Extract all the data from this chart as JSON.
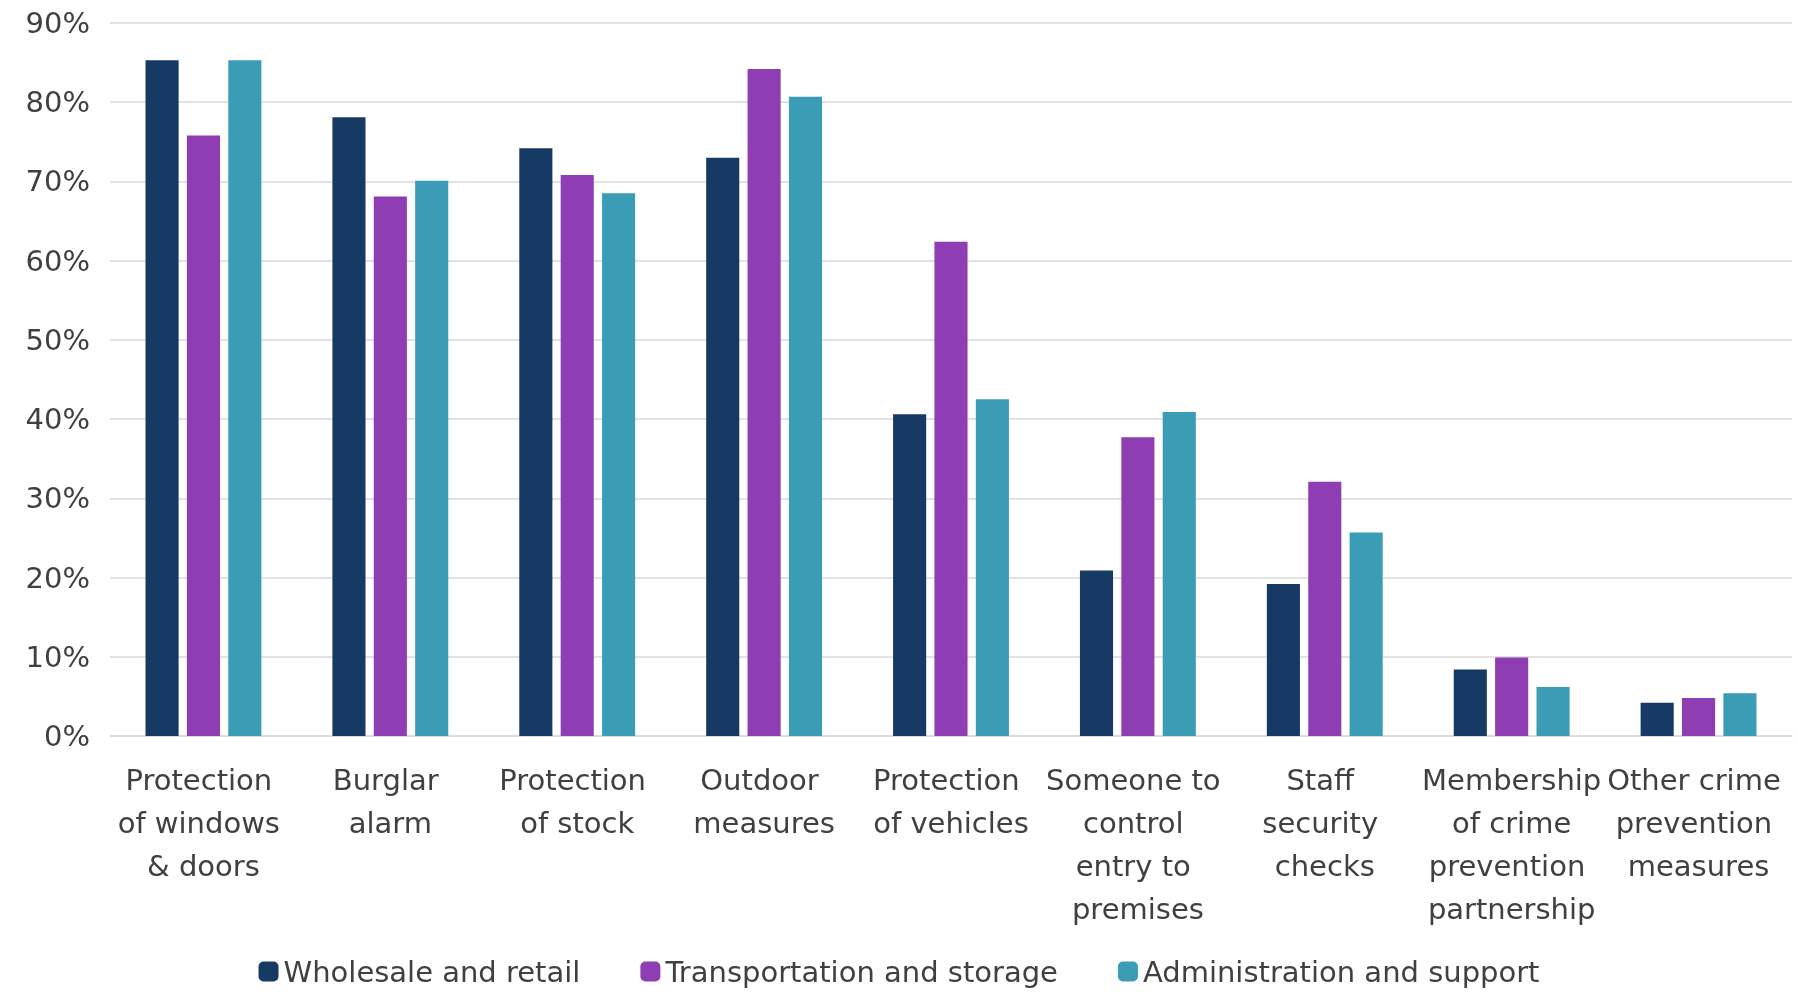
{
  "chart_data": {
    "type": "bar",
    "categories": [
      "Protection of windows & doors",
      "Burglar alarm",
      "Protection of stock",
      "Outdoor measures",
      "Protection of vehicles",
      "Someone to control entry to premises",
      "Staff security checks",
      "Membership of crime prevention partnership",
      "Other crime prevention measures"
    ],
    "series": [
      {
        "name": "Wholesale and retail",
        "color": "#173a64",
        "values": [
          85.3,
          78.1,
          74.2,
          73.0,
          40.6,
          20.9,
          19.2,
          8.4,
          4.2
        ]
      },
      {
        "name": "Transportation and storage",
        "color": "#8f3db3",
        "values": [
          75.8,
          68.1,
          70.8,
          84.2,
          62.4,
          37.7,
          32.1,
          9.9,
          4.8
        ]
      },
      {
        "name": "Administration and support",
        "color": "#3a9db5",
        "values": [
          85.3,
          70.1,
          68.5,
          80.7,
          42.5,
          40.9,
          25.7,
          6.2,
          5.4
        ]
      }
    ],
    "ylim": [
      0,
      90
    ],
    "yticks": [
      {
        "value": 0,
        "label": "0%"
      },
      {
        "value": 10,
        "label": "10%"
      },
      {
        "value": 20,
        "label": "20%"
      },
      {
        "value": 30,
        "label": "30%"
      },
      {
        "value": 40,
        "label": "40%"
      },
      {
        "value": 50,
        "label": "50%"
      },
      {
        "value": 60,
        "label": "60%"
      },
      {
        "value": 70,
        "label": "70%"
      },
      {
        "value": 80,
        "label": "80%"
      },
      {
        "value": 90,
        "label": "90%"
      }
    ],
    "grid": "y",
    "legend": "bottom"
  }
}
